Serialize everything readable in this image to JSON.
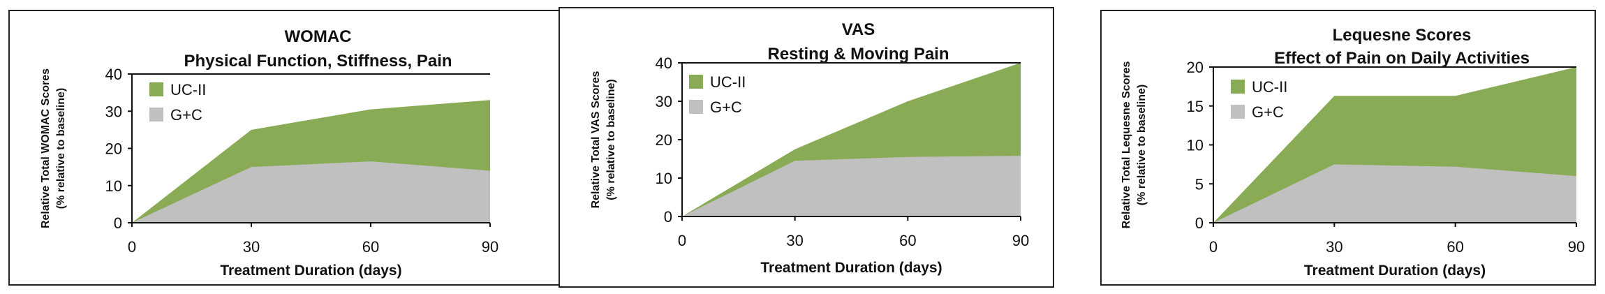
{
  "chart_data": [
    {
      "type": "area",
      "title": "WOMAC",
      "subtitle": "Physical Function, Stiffness, Pain",
      "xlabel": "Treatment Duration (days)",
      "ylabel": "Relative Total WOMAC Scores",
      "ylabel2": "(% relative to baseline)",
      "x": [
        0,
        30,
        60,
        90
      ],
      "ylim": [
        0,
        40
      ],
      "yticks": [
        0,
        10,
        20,
        30,
        40
      ],
      "legend_position": "top-left",
      "series": [
        {
          "name": "UC-II",
          "color": "#8aab55",
          "values": [
            0,
            25,
            30.5,
            33
          ]
        },
        {
          "name": "G+C",
          "color": "#c0c0c0",
          "values": [
            0,
            15,
            16.5,
            14
          ]
        }
      ]
    },
    {
      "type": "area",
      "title": "VAS",
      "subtitle": "Resting & Moving Pain",
      "xlabel": "Treatment Duration (days)",
      "ylabel": "Relative Total VAS Scores",
      "ylabel2": "(% relative to baseline)",
      "x": [
        0,
        30,
        60,
        90
      ],
      "ylim": [
        0,
        40
      ],
      "yticks": [
        0,
        10,
        20,
        30,
        40
      ],
      "legend_position": "top-left",
      "series": [
        {
          "name": "UC-II",
          "color": "#8aab55",
          "values": [
            0,
            17.5,
            30,
            40
          ]
        },
        {
          "name": "G+C",
          "color": "#c0c0c0",
          "values": [
            0,
            14.5,
            15.5,
            15.8
          ]
        }
      ]
    },
    {
      "type": "area",
      "title": "Lequesne Scores",
      "subtitle": "Effect of Pain on Daily Activities",
      "xlabel": "Treatment Duration (days)",
      "ylabel": "Relative Total Lequesne Scores",
      "ylabel2": "(% relative to baseline)",
      "x": [
        0,
        30,
        60,
        90
      ],
      "ylim": [
        0,
        20
      ],
      "yticks": [
        0,
        5,
        10,
        15,
        20
      ],
      "legend_position": "top-left",
      "series": [
        {
          "name": "UC-II",
          "color": "#8aab55",
          "values": [
            0,
            16.3,
            16.3,
            20
          ]
        },
        {
          "name": "G+C",
          "color": "#c0c0c0",
          "values": [
            0,
            7.5,
            7.2,
            6
          ]
        }
      ]
    }
  ]
}
